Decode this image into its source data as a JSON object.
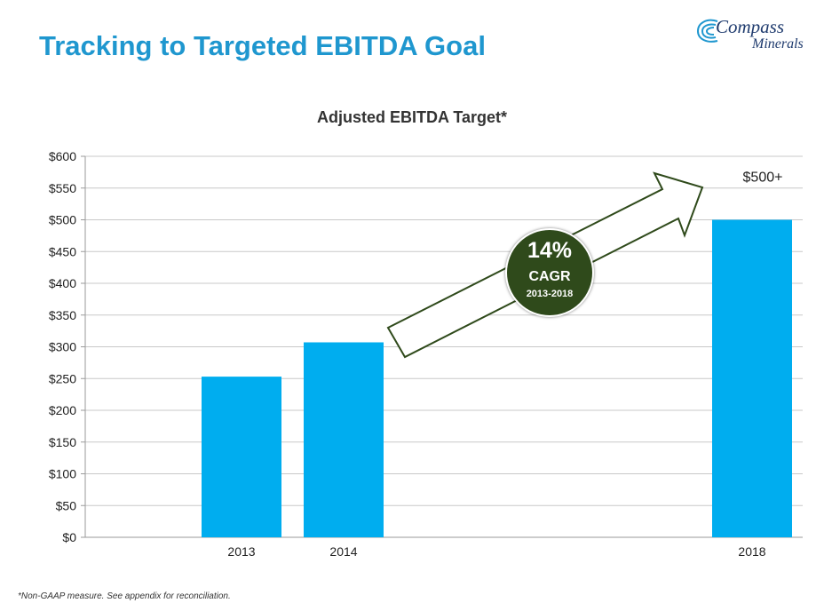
{
  "slide": {
    "title": "Tracking to Targeted EBITDA Goal",
    "footnote": "*Non-GAAP measure. See appendix for reconciliation."
  },
  "logo": {
    "line1": "Compass",
    "line2": "Minerals"
  },
  "badge": {
    "percent": "14%",
    "label": "CAGR",
    "range": "2013-2018"
  },
  "colors": {
    "bar": "#00adef",
    "title": "#1f97cf",
    "badge": "#2f4a1b",
    "arrow": "#2f4a1b",
    "grid": "#c8c8c8"
  },
  "chart_data": {
    "type": "bar",
    "title": "Adjusted EBITDA Target*",
    "categories": [
      "2013",
      "2014",
      "2018"
    ],
    "values": [
      253,
      307,
      500
    ],
    "value_labels": [
      "",
      "",
      "$500+"
    ],
    "y_ticks": [
      "$0",
      "$50",
      "$100",
      "$150",
      "$200",
      "$250",
      "$300",
      "$350",
      "$400",
      "$450",
      "$500",
      "$550",
      "$600"
    ],
    "ylim": [
      0,
      600
    ],
    "grid": true,
    "legend": "none"
  }
}
